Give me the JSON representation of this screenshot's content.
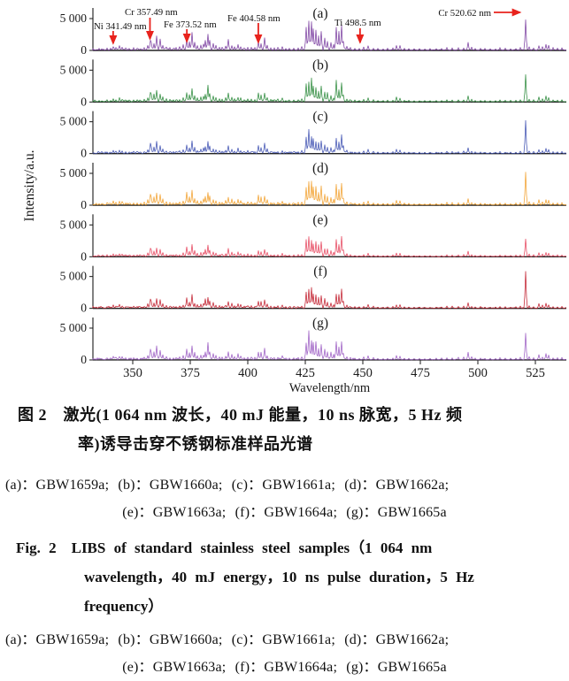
{
  "chart_data": {
    "type": "line",
    "title": "",
    "xlabel": "Wavelength/nm",
    "ylabel": "Intensity/a.u.",
    "xlim": [
      332.7,
      538.5
    ],
    "ylim": [
      0,
      6600
    ],
    "xticks": [
      350,
      375,
      400,
      425,
      450,
      475,
      500,
      525
    ],
    "yticks": [
      0,
      5000
    ],
    "ytick_labels": [
      "0",
      "5 000"
    ],
    "grid": false,
    "legend": "none",
    "panels": [
      {
        "label": "(a)",
        "sample": "GBW1659a",
        "color": "#7b3fa0",
        "scale": 1.0,
        "peak_520_62": 4800
      },
      {
        "label": "(b)",
        "sample": "GBW1660a",
        "color": "#2e8b3d",
        "scale": 0.88,
        "peak_520_62": 4300
      },
      {
        "label": "(c)",
        "sample": "GBW1661a",
        "color": "#4052b2",
        "scale": 0.8,
        "peak_520_62": 5200
      },
      {
        "label": "(d)",
        "sample": "GBW1662a",
        "color": "#f2a12f",
        "scale": 0.95,
        "peak_520_62": 5200
      },
      {
        "label": "(e)",
        "sample": "GBW1663a",
        "color": "#e6475f",
        "scale": 0.75,
        "peak_520_62": 2800
      },
      {
        "label": "(f)",
        "sample": "GBW1664a",
        "color": "#c2202f",
        "scale": 0.78,
        "peak_520_62": 5800
      },
      {
        "label": "(g)",
        "sample": "GBW1665a",
        "color": "#9d5fc4",
        "scale": 0.92,
        "peak_520_62": 4200
      }
    ],
    "peaks_nm_intensity": [
      [
        335.2,
        280
      ],
      [
        336.5,
        220
      ],
      [
        338.9,
        380
      ],
      [
        340.2,
        300
      ],
      [
        341.5,
        620
      ],
      [
        342.8,
        450
      ],
      [
        344.3,
        700
      ],
      [
        345.5,
        520
      ],
      [
        347,
        380
      ],
      [
        348.5,
        320
      ],
      [
        350.2,
        400
      ],
      [
        351.8,
        350
      ],
      [
        353.5,
        300
      ],
      [
        355,
        450
      ],
      [
        356.4,
        900
      ],
      [
        357.5,
        1750
      ],
      [
        358.2,
        1400
      ],
      [
        359.3,
        1250
      ],
      [
        360.5,
        2150
      ],
      [
        361.8,
        1550
      ],
      [
        363,
        900
      ],
      [
        364.5,
        550
      ],
      [
        366,
        420
      ],
      [
        367.5,
        380
      ],
      [
        369,
        400
      ],
      [
        370.5,
        500
      ],
      [
        372,
        800
      ],
      [
        373.5,
        1850
      ],
      [
        374.6,
        1350
      ],
      [
        375.8,
        2450
      ],
      [
        376.8,
        1150
      ],
      [
        378.1,
        700
      ],
      [
        379.5,
        850
      ],
      [
        380.6,
        1000
      ],
      [
        381.6,
        1650
      ],
      [
        382.6,
        2550
      ],
      [
        383.6,
        1450
      ],
      [
        384.9,
        1050
      ],
      [
        386.2,
        700
      ],
      [
        387.5,
        520
      ],
      [
        389,
        480
      ],
      [
        390.3,
        700
      ],
      [
        391.6,
        1550
      ],
      [
        392.9,
        900
      ],
      [
        394.1,
        600
      ],
      [
        395.6,
        950
      ],
      [
        397,
        680
      ],
      [
        398.4,
        420
      ],
      [
        400,
        550
      ],
      [
        401.5,
        480
      ],
      [
        403,
        420
      ],
      [
        404.6,
        1500
      ],
      [
        405.6,
        1250
      ],
      [
        407.2,
        1750
      ],
      [
        408.3,
        850
      ],
      [
        410,
        420
      ],
      [
        411.6,
        360
      ],
      [
        413.2,
        480
      ],
      [
        414.9,
        680
      ],
      [
        416.5,
        300
      ],
      [
        418.2,
        330
      ],
      [
        420,
        380
      ],
      [
        421.8,
        420
      ],
      [
        423.4,
        550
      ],
      [
        425.4,
        3450
      ],
      [
        426.6,
        4250
      ],
      [
        427.6,
        3850
      ],
      [
        428.6,
        3250
      ],
      [
        429.8,
        2750
      ],
      [
        430.9,
        2350
      ],
      [
        432.1,
        2850
      ],
      [
        433.5,
        1750
      ],
      [
        434.8,
        1450
      ],
      [
        436.1,
        1150
      ],
      [
        437.4,
        850
      ],
      [
        438.4,
        3350
      ],
      [
        439.5,
        2550
      ],
      [
        440.6,
        3750
      ],
      [
        441.6,
        1350
      ],
      [
        443,
        600
      ],
      [
        444.7,
        400
      ],
      [
        446.5,
        330
      ],
      [
        448.3,
        280
      ],
      [
        450.2,
        450
      ],
      [
        452.4,
        750
      ],
      [
        454.5,
        380
      ],
      [
        456.6,
        280
      ],
      [
        458.7,
        250
      ],
      [
        460.8,
        300
      ],
      [
        463,
        350
      ],
      [
        464.8,
        850
      ],
      [
        466.2,
        650
      ],
      [
        468,
        320
      ],
      [
        470,
        270
      ],
      [
        472.3,
        240
      ],
      [
        474.6,
        270
      ],
      [
        477,
        230
      ],
      [
        479.4,
        250
      ],
      [
        481.8,
        270
      ],
      [
        484.2,
        300
      ],
      [
        486.6,
        420
      ],
      [
        489,
        380
      ],
      [
        491.4,
        400
      ],
      [
        493.8,
        450
      ],
      [
        495.8,
        1150
      ],
      [
        497.3,
        480
      ],
      [
        499,
        300
      ],
      [
        501,
        320
      ],
      [
        503.2,
        280
      ],
      [
        505.4,
        250
      ],
      [
        507.6,
        240
      ],
      [
        509.8,
        380
      ],
      [
        512,
        320
      ],
      [
        514.2,
        280
      ],
      [
        516.4,
        330
      ],
      [
        518.5,
        450
      ],
      [
        520.62,
        4800
      ],
      [
        522.3,
        550
      ],
      [
        524.2,
        380
      ],
      [
        526.4,
        850
      ],
      [
        528.1,
        580
      ],
      [
        529.6,
        1050
      ],
      [
        530.8,
        750
      ],
      [
        532.5,
        400
      ],
      [
        534.5,
        350
      ],
      [
        536.5,
        420
      ]
    ],
    "annotations": [
      {
        "label": "Ni 341.49 nm",
        "nm": 341.49,
        "arrow_nm": 341.49,
        "arrow": "vertical"
      },
      {
        "label": "Cr 357.49 nm",
        "nm": 357.49,
        "arrow_nm": 357.49,
        "arrow": "vertical"
      },
      {
        "label": "Fe 373.52 nm",
        "nm": 373.52,
        "arrow_nm": 373.52,
        "arrow": "vertical"
      },
      {
        "label": "Fe 404.58 nm",
        "nm": 404.58,
        "arrow_nm": 404.58,
        "arrow": "vertical"
      },
      {
        "label": "Ti 498.5 nm",
        "nm": 498.5,
        "arrow_nm": 448.8,
        "arrow": "vertical"
      },
      {
        "label": "Cr 520.62 nm",
        "nm": 520.62,
        "arrow_nm": 520.62,
        "arrow": "horizontal"
      }
    ],
    "annotation_arrow_color": "#e8231d"
  },
  "caption": {
    "zh_line1": "图 2　激光(1 064 nm 波长，40 mJ 能量，10 ns 脉宽，5 Hz 频",
    "zh_line2": "率)诱导击穿不锈钢标准样品光谱",
    "samples_line1": "(a)：GBW1659a; (b)：GBW1660a; (c)：GBW1661a; (d)：GBW1662a;",
    "samples_line2": "(e)：GBW1663a; (f)：GBW1664a; (g)：GBW1665a",
    "en_line1": "Fig. 2　LIBS of standard stainless steel samples（1 064 nm",
    "en_line2": "wavelength，40 mJ energy，10 ns pulse duration，5 Hz",
    "en_line3": "frequency）",
    "samples_line3": "(a)：GBW1659a; (b)：GBW1660a; (c)：GBW1661a; (d)：GBW1662a;",
    "samples_line4": "(e)：GBW1663a; (f)：GBW1664a; (g)：GBW1665a"
  }
}
